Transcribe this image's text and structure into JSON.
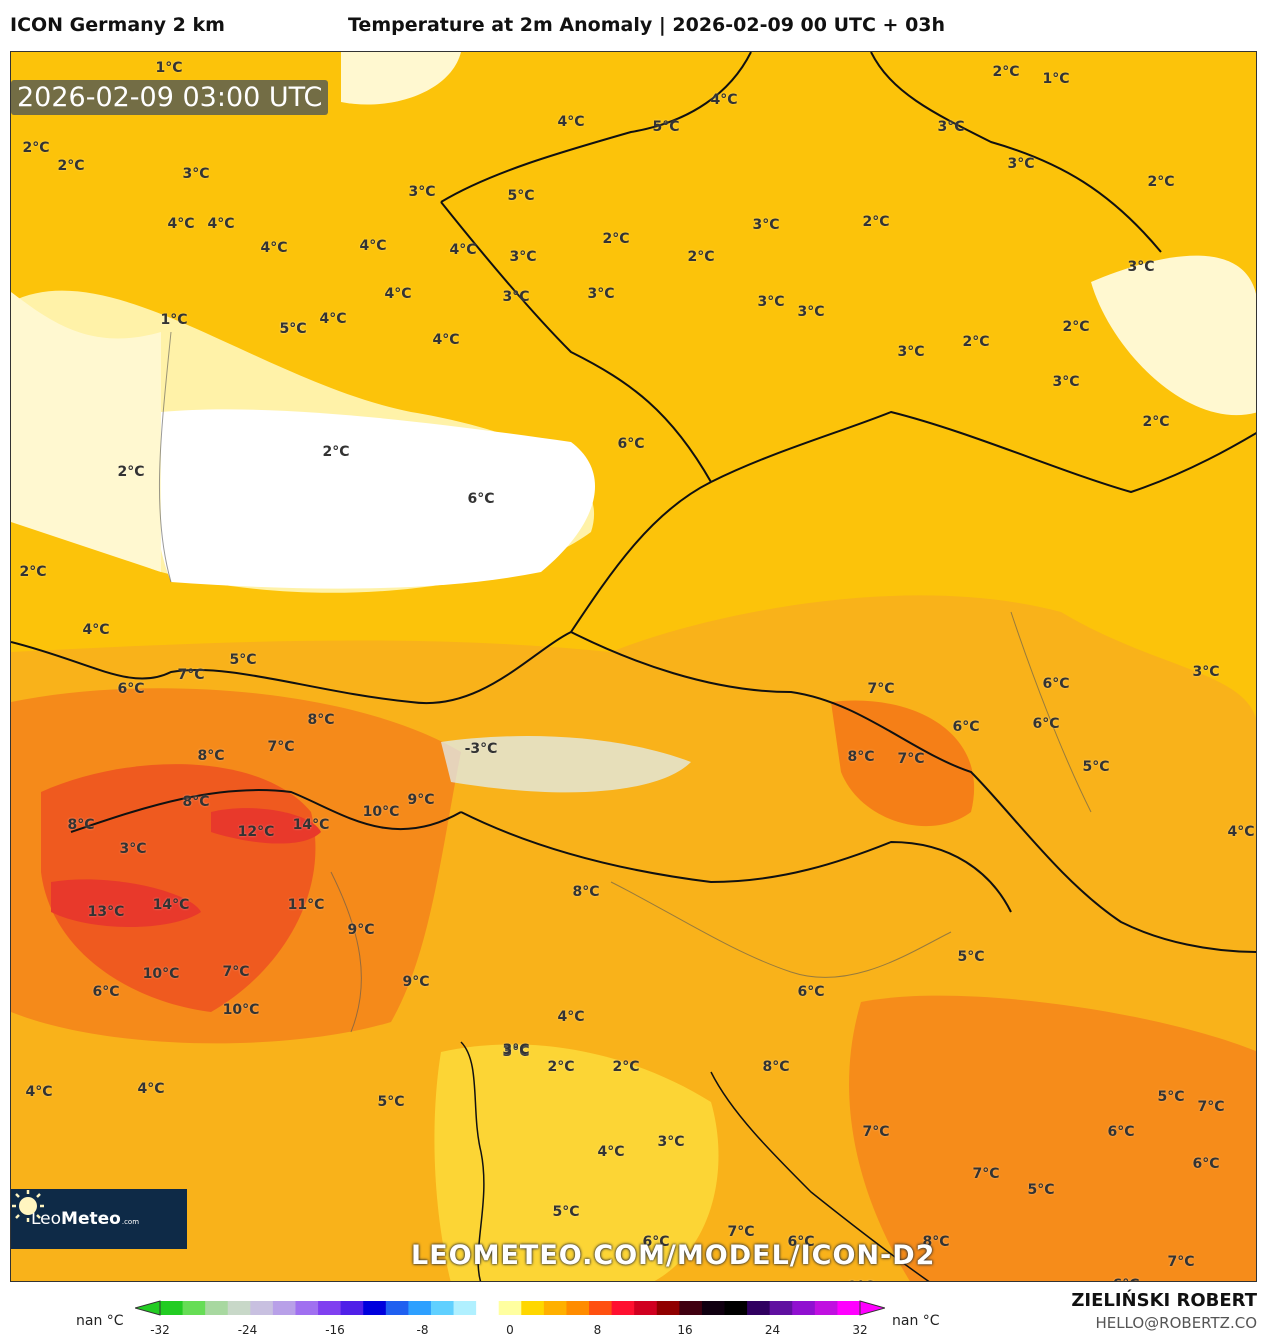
{
  "header": {
    "model": "ICON Germany 2 km",
    "title": "Temperature at 2m Anomaly | 2026-02-09 00 UTC + 03h"
  },
  "map": {
    "timestamp": "2026-02-09 03:00 UTC",
    "watermark": "LEOMETEO.COM/MODEL/ICON-D2",
    "logo": {
      "part1": "Leo",
      "part2": "Meteo",
      "part3": ".com"
    },
    "labels": [
      "1°C",
      "2°C",
      "2°C",
      "3°C",
      "4°C",
      "4°C",
      "4°C",
      "5°C",
      "4°C",
      "4°C",
      "3°C",
      "5°C",
      "3°C",
      "4°C",
      "4°C",
      "4°C",
      "3°C",
      "2°C",
      "3°C",
      "2°C",
      "3°C",
      "4°C",
      "5°C",
      "4°C",
      "3°C",
      "3°C",
      "2°C",
      "1°C",
      "3°C",
      "1°C",
      "3°C",
      "2°C",
      "2°C",
      "2°C",
      "3°C",
      "3°C",
      "2°C",
      "3°C",
      "2°C",
      "2°C",
      "2°C",
      "4°C",
      "5°C",
      "5°C",
      "6°C",
      "7°C",
      "6°C",
      "8°C",
      "8°C",
      "7°C",
      "12°C",
      "14°C",
      "10°C",
      "9°C",
      "13°C",
      "14°C",
      "11°C",
      "9°C",
      "10°C",
      "7°C",
      "10°C",
      "6°C",
      "3°C",
      "8°C",
      "8°C",
      "9°C",
      "8°C",
      "7°C",
      "6°C",
      "6°C",
      "5°C",
      "6°C",
      "7°C",
      "8°C",
      "6°C",
      "5°C",
      "4°C",
      "3°C",
      "2°C",
      "2°C",
      "3°C",
      "5°C",
      "8°C",
      "7°C",
      "6°C",
      "7°C",
      "6°C",
      "5°C",
      "4°C",
      "5°C",
      "4°C",
      "-3°C",
      "6°C",
      "9°C",
      "7°C",
      "8°C",
      "6°C",
      "7°C",
      "2°C",
      "4°C",
      "3°C",
      "6°C",
      "5°C",
      "3°C",
      "4°C",
      "7°C",
      "6°C"
    ],
    "colors": {
      "base": "#fcc30a",
      "white": "#ffffff",
      "light": "#fff2a8",
      "orange": "#f9a21a",
      "deep_orange": "#f57f17",
      "red": "#e8392b",
      "pink": "#f05a8a"
    }
  },
  "colorbar": {
    "left_label": "nan °C",
    "right_label": "nan °C",
    "ticks": [
      "-32",
      "-24",
      "-16",
      "-8",
      "0",
      "8",
      "16",
      "24",
      "32"
    ],
    "colors": [
      "#22cc22",
      "#66dd55",
      "#a8d8a0",
      "#c8d8c8",
      "#c8c0e0",
      "#b8a0e8",
      "#a070f0",
      "#8040f0",
      "#5020e8",
      "#0000dd",
      "#2060f0",
      "#2ea0ff",
      "#60d0ff",
      "#b0f0ff",
      "#ffffff",
      "#ffffa0",
      "#ffd700",
      "#ffb000",
      "#ff8c00",
      "#ff5010",
      "#ff1030",
      "#d00020",
      "#900000",
      "#400010",
      "#100010",
      "#000000",
      "#300060",
      "#6010a0",
      "#9010d0",
      "#c010e0",
      "#ff00ff"
    ]
  },
  "footer": {
    "author": "ZIELIŃSKI ROBERT",
    "email": "HELLO@ROBERTZ.CO"
  }
}
